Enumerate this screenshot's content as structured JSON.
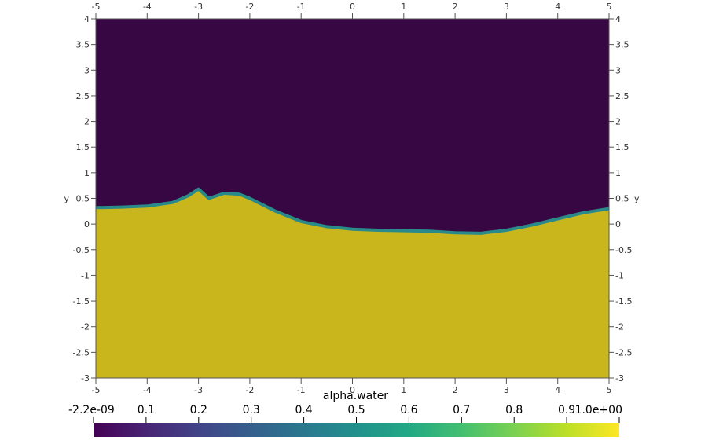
{
  "chart_data": {
    "type": "heatmap",
    "field": "alpha.water",
    "xlim": [
      -5,
      5
    ],
    "ylim": [
      -3,
      4
    ],
    "x_ticks": [
      "-5",
      "-4",
      "-3",
      "-2",
      "-1",
      "0",
      "1",
      "2",
      "3",
      "4",
      "5"
    ],
    "y_ticks": [
      "-3",
      "-2.5",
      "-2",
      "-1.5",
      "-1",
      "-0.5",
      "0",
      "0.5",
      "1",
      "1.5",
      "2",
      "2.5",
      "3",
      "3.5",
      "4"
    ],
    "ylabel": "y",
    "interface": {
      "description_values": "water surface height y at each x",
      "x": [
        -5,
        -4.5,
        -4,
        -3.5,
        -3.2,
        -3,
        -2.8,
        -2.5,
        -2.2,
        -2,
        -1.5,
        -1,
        -0.5,
        0,
        0.5,
        1,
        1.5,
        2,
        2.5,
        3,
        3.5,
        4,
        4.5,
        5
      ],
      "y": [
        0.32,
        0.33,
        0.35,
        0.42,
        0.55,
        0.68,
        0.5,
        0.6,
        0.58,
        0.5,
        0.25,
        0.05,
        -0.05,
        -0.1,
        -0.12,
        -0.13,
        -0.14,
        -0.17,
        -0.18,
        -0.12,
        -0.02,
        0.1,
        0.22,
        0.3
      ]
    },
    "colorbar": {
      "title": "alpha.water",
      "min_label": "-2.2e-09",
      "max_label": "1.0e+00",
      "tick_labels": [
        "-2.2e-09",
        "0.1",
        "0.2",
        "0.3",
        "0.4",
        "0.5",
        "0.6",
        "0.7",
        "0.8",
        "0.9",
        "1.0e+00"
      ],
      "tick_values": [
        0,
        0.1,
        0.2,
        0.3,
        0.4,
        0.5,
        0.6,
        0.7,
        0.8,
        0.9,
        1.0
      ],
      "colormap": "viridis"
    },
    "colors": {
      "air": "#360742",
      "water": "#c9b61d",
      "interface": "#2a8a8a",
      "axis": "#555555"
    }
  }
}
